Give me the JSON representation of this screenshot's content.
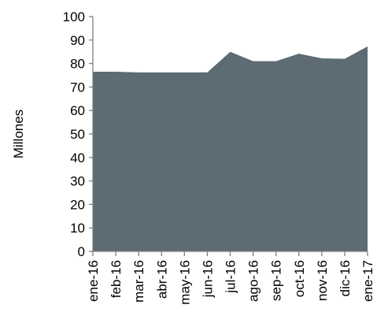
{
  "chart_data": {
    "type": "area",
    "title": "",
    "xlabel": "",
    "ylabel": "Millones",
    "ylim": [
      0,
      100
    ],
    "yticks": [
      0,
      10,
      20,
      30,
      40,
      50,
      60,
      70,
      80,
      90,
      100
    ],
    "grid": false,
    "legend": "none",
    "categories": [
      "ene-16",
      "feb-16",
      "mar-16",
      "abr-16",
      "may-16",
      "jun-16",
      "jul-16",
      "ago-16",
      "sep-16",
      "oct-16",
      "nov-16",
      "dic-16",
      "ene-17"
    ],
    "series": [
      {
        "values": [
          76.5,
          76.5,
          76.2,
          76.2,
          76.2,
          76.2,
          85.0,
          81.0,
          81.0,
          84.2,
          82.2,
          82.0,
          87.3
        ],
        "color": "#5d6b73"
      }
    ],
    "axis_color": "#808080"
  }
}
